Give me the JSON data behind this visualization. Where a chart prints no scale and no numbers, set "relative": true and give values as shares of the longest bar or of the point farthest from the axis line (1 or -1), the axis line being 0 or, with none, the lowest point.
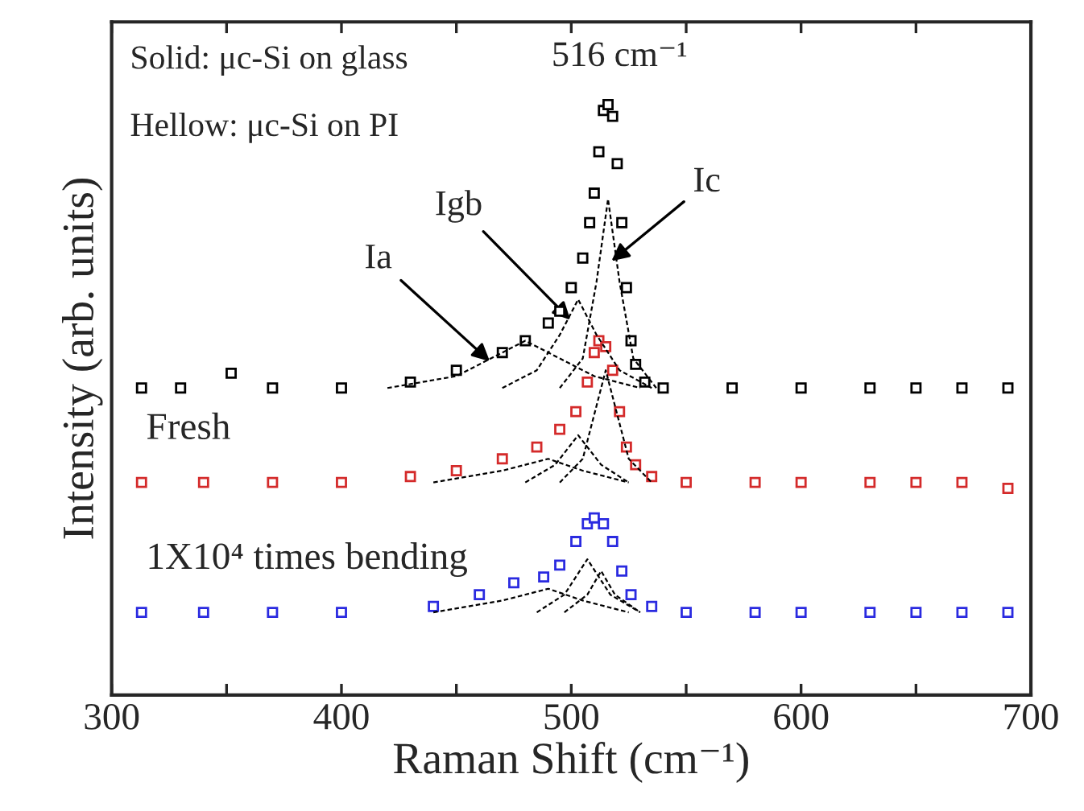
{
  "chart_data": {
    "type": "scatter",
    "relative": true,
    "xlabel": "Raman Shift (cm⁻¹)",
    "ylabel": "Intensity (arb. units)",
    "xlim": [
      300,
      700
    ],
    "xticks": [
      300,
      {
        "value": 350,
        "label": null
      },
      400,
      {
        "value": 450,
        "label": null
      },
      500,
      {
        "value": 550,
        "label": null
      },
      600,
      {
        "value": 650,
        "label": null
      },
      700
    ],
    "tick_labels": "x",
    "grid": false,
    "legend": false,
    "annotations": [
      "Solid: μc-Si on glass",
      "Hellow: μc-Si on PI",
      {
        "text": "516 cm⁻¹",
        "x": 516,
        "y": 1.0
      },
      {
        "text": "Ia",
        "x": 466,
        "y": 0.56
      },
      {
        "text": "Igb",
        "x": 501,
        "y": 0.63
      },
      {
        "text": "Ic",
        "x": 516,
        "y": 0.73
      }
    ],
    "series": [
      {
        "marker": "square",
        "color": "#000000",
        "x": [
          313,
          330,
          352,
          370,
          400,
          430,
          450,
          470,
          480,
          490,
          495,
          500,
          505,
          508,
          510,
          512,
          514,
          516,
          518,
          520,
          522,
          524,
          526,
          528,
          532,
          540,
          570,
          600,
          630,
          650,
          670,
          690
        ],
        "values": [
          0.52,
          0.52,
          0.545,
          0.52,
          0.52,
          0.53,
          0.55,
          0.58,
          0.6,
          0.63,
          0.65,
          0.69,
          0.74,
          0.8,
          0.85,
          0.92,
          0.99,
          1.0,
          0.98,
          0.9,
          0.8,
          0.69,
          0.6,
          0.56,
          0.53,
          0.52,
          0.52,
          0.52,
          0.52,
          0.52,
          0.52,
          0.52
        ]
      },
      {
        "marker": "square",
        "name": "Fresh",
        "color": "#d42a2a",
        "x": [
          313,
          340,
          370,
          400,
          430,
          450,
          470,
          485,
          495,
          502,
          507,
          510,
          512,
          515,
          518,
          521,
          524,
          528,
          535,
          550,
          580,
          600,
          630,
          650,
          670,
          690
        ],
        "values": [
          0.36,
          0.36,
          0.36,
          0.36,
          0.37,
          0.38,
          0.4,
          0.42,
          0.45,
          0.48,
          0.53,
          0.58,
          0.6,
          0.59,
          0.55,
          0.48,
          0.42,
          0.39,
          0.37,
          0.36,
          0.36,
          0.36,
          0.36,
          0.36,
          0.36,
          0.35
        ]
      },
      {
        "marker": "square",
        "name": "1X10⁴ times bending",
        "color": "#2a2ae0",
        "x": [
          313,
          340,
          370,
          400,
          440,
          460,
          475,
          488,
          495,
          502,
          507,
          510,
          514,
          518,
          522,
          526,
          535,
          550,
          580,
          600,
          630,
          650,
          670,
          690
        ],
        "values": [
          0.14,
          0.14,
          0.14,
          0.14,
          0.15,
          0.17,
          0.19,
          0.2,
          0.22,
          0.26,
          0.29,
          0.3,
          0.29,
          0.26,
          0.21,
          0.17,
          0.15,
          0.14,
          0.14,
          0.14,
          0.14,
          0.14,
          0.14,
          0.14
        ]
      },
      {
        "type": "line",
        "line_style": "dashed",
        "color": "#000000",
        "x": [
          420,
          450,
          465,
          480,
          495,
          510,
          530
        ],
        "values": [
          0.52,
          0.54,
          0.57,
          0.6,
          0.57,
          0.54,
          0.52
        ]
      },
      {
        "type": "line",
        "line_style": "dashed",
        "color": "#000000",
        "x": [
          470,
          485,
          495,
          503,
          511,
          521,
          535
        ],
        "values": [
          0.52,
          0.55,
          0.61,
          0.67,
          0.61,
          0.55,
          0.52
        ]
      },
      {
        "type": "line",
        "line_style": "dashed",
        "color": "#000000",
        "x": [
          495,
          505,
          511,
          516,
          521,
          527,
          537
        ],
        "values": [
          0.52,
          0.57,
          0.7,
          0.84,
          0.7,
          0.57,
          0.52
        ]
      },
      {
        "type": "line",
        "line_style": "dashed",
        "color": "#000000",
        "x": [
          440,
          470,
          490,
          505,
          525
        ],
        "values": [
          0.36,
          0.38,
          0.4,
          0.38,
          0.36
        ]
      },
      {
        "type": "line",
        "line_style": "dashed",
        "color": "#000000",
        "x": [
          480,
          493,
          503,
          513,
          525
        ],
        "values": [
          0.36,
          0.39,
          0.44,
          0.39,
          0.36
        ]
      },
      {
        "type": "line",
        "line_style": "dashed",
        "color": "#000000",
        "x": [
          495,
          505,
          511,
          515,
          519,
          525,
          535
        ],
        "values": [
          0.36,
          0.4,
          0.49,
          0.55,
          0.49,
          0.4,
          0.36
        ]
      },
      {
        "type": "line",
        "line_style": "dashed",
        "color": "#000000",
        "x": [
          440,
          470,
          490,
          505,
          525
        ],
        "values": [
          0.14,
          0.16,
          0.18,
          0.16,
          0.14
        ]
      },
      {
        "type": "line",
        "line_style": "dashed",
        "color": "#000000",
        "x": [
          485,
          497,
          507,
          517,
          530
        ],
        "values": [
          0.14,
          0.17,
          0.23,
          0.17,
          0.14
        ]
      },
      {
        "type": "line",
        "line_style": "dashed",
        "color": "#000000",
        "x": [
          497,
          507,
          513,
          519,
          530
        ],
        "values": [
          0.14,
          0.17,
          0.21,
          0.17,
          0.14
        ]
      }
    ]
  }
}
